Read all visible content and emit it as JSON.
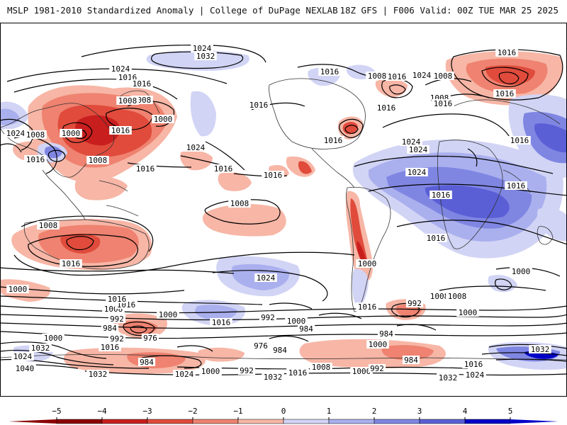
{
  "header": {
    "left": "MSLP 1981-2010 Standardized Anomaly | College of DuPage NEXLAB",
    "right": "18Z GFS | F006 Valid: 00Z TUE MAR 25 2025"
  },
  "colors": {
    "neg_5": "#8b0000",
    "neg_4": "#c81e1e",
    "neg_3": "#e04b3c",
    "neg_2": "#ef8270",
    "neg_1": "#f7b6a6",
    "pos_1": "#d2d4f5",
    "pos_2": "#aab0ee",
    "pos_3": "#7f86e2",
    "pos_4": "#5a5fd6",
    "pos_5": "#0000c8",
    "contour": "#000000",
    "coast": "#333333"
  },
  "colorbar": {
    "ticks": [
      "−5",
      "−4",
      "−3",
      "−2",
      "−1",
      "0",
      "1",
      "2",
      "3",
      "4",
      "5"
    ]
  },
  "isobar_labels": [
    "1024",
    "1032",
    "1024",
    "1016",
    "1016",
    "1008",
    "1016",
    "1016",
    "1024",
    "1008",
    "1000",
    "1024",
    "1008",
    "1000",
    "1016",
    "1008",
    "1016",
    "1024",
    "1016",
    "1016",
    "1016",
    "1016",
    "1008",
    "1016",
    "1016",
    "1008",
    "1016",
    "1016",
    "1024",
    "1008",
    "1016",
    "1016",
    "1024",
    "1016",
    "1016",
    "1000",
    "1008",
    "1016",
    "1000",
    "1000",
    "1008",
    "1016",
    "1008",
    "992",
    "1000",
    "984",
    "992",
    "1008",
    "1000",
    "984",
    "1016",
    "976",
    "984",
    "984",
    "1000",
    "992",
    "1032",
    "1016",
    "1024",
    "1040",
    "976",
    "984",
    "992",
    "1000",
    "1008",
    "1016",
    "984",
    "1024",
    "1000",
    "1032",
    "1032",
    "1016",
    "1024",
    "1016",
    "992",
    "1000",
    "1000",
    "992",
    "1016",
    "1016",
    "1024",
    "1024",
    "1032",
    "1032",
    "1008"
  ]
}
